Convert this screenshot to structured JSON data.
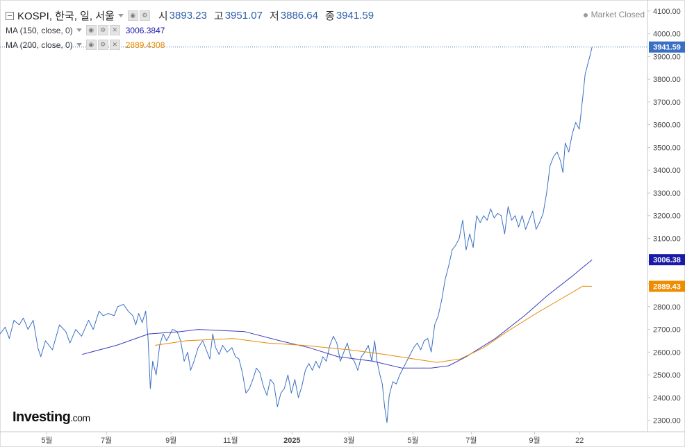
{
  "header": {
    "symbol": "KOSPI, 한국, 일, 서울",
    "open_label": "시",
    "open_value": "3893.23",
    "high_label": "고",
    "high_value": "3951.07",
    "low_label": "저",
    "low_value": "3886.64",
    "close_label": "종",
    "close_value": "3941.59"
  },
  "indicators": [
    {
      "label": "MA (150, close, 0)",
      "value": "3006.3847",
      "color": "#1a1aa8"
    },
    {
      "label": "MA (200, close, 0)",
      "value": "2889.4308",
      "color": "#e58a00"
    }
  ],
  "market_status": "Market Closed",
  "logo": {
    "name": "Investing",
    "suffix": ".com"
  },
  "price_tags": {
    "last": "3941.59",
    "ma150": "3006.38",
    "ma200": "2889.43"
  },
  "chart_data": {
    "type": "line",
    "ylim": [
      2250,
      4130
    ],
    "y_ticks": [
      "2300.00",
      "2400.00",
      "2500.00",
      "2600.00",
      "2700.00",
      "2800.00",
      "2900.00",
      "3000.00",
      "3100.00",
      "3200.00",
      "3300.00",
      "3400.00",
      "3500.00",
      "3600.00",
      "3700.00",
      "3800.00",
      "3900.00",
      "4000.00",
      "4100.00"
    ],
    "x_ticks": [
      {
        "label": "5월",
        "t": 0.0804
      },
      {
        "label": "7월",
        "t": 0.1826
      },
      {
        "label": "9월",
        "t": 0.2935
      },
      {
        "label": "11월",
        "t": 0.3957
      },
      {
        "label": "2025",
        "t": 0.5011
      },
      {
        "label": "3월",
        "t": 0.5989
      },
      {
        "label": "5월",
        "t": 0.7087
      },
      {
        "label": "7월",
        "t": 0.8087
      },
      {
        "label": "9월",
        "t": 0.9174
      },
      {
        "label": "22",
        "t": 0.9946
      }
    ],
    "series": [
      {
        "color": "#3a6fc4",
        "width": 1,
        "points": [
          [
            0.0,
            2680
          ],
          [
            0.009,
            2710
          ],
          [
            0.016,
            2660
          ],
          [
            0.024,
            2740
          ],
          [
            0.033,
            2720
          ],
          [
            0.04,
            2750
          ],
          [
            0.048,
            2700
          ],
          [
            0.057,
            2740
          ],
          [
            0.065,
            2620
          ],
          [
            0.07,
            2580
          ],
          [
            0.078,
            2650
          ],
          [
            0.09,
            2610
          ],
          [
            0.102,
            2720
          ],
          [
            0.113,
            2690
          ],
          [
            0.12,
            2640
          ],
          [
            0.13,
            2700
          ],
          [
            0.14,
            2670
          ],
          [
            0.152,
            2740
          ],
          [
            0.16,
            2700
          ],
          [
            0.17,
            2780
          ],
          [
            0.177,
            2760
          ],
          [
            0.186,
            2770
          ],
          [
            0.196,
            2760
          ],
          [
            0.202,
            2800
          ],
          [
            0.212,
            2810
          ],
          [
            0.22,
            2780
          ],
          [
            0.228,
            2760
          ],
          [
            0.233,
            2720
          ],
          [
            0.238,
            2770
          ],
          [
            0.244,
            2730
          ],
          [
            0.25,
            2780
          ],
          [
            0.254,
            2660
          ],
          [
            0.258,
            2440
          ],
          [
            0.262,
            2560
          ],
          [
            0.268,
            2500
          ],
          [
            0.274,
            2630
          ],
          [
            0.28,
            2680
          ],
          [
            0.286,
            2650
          ],
          [
            0.296,
            2700
          ],
          [
            0.304,
            2690
          ],
          [
            0.31,
            2650
          ],
          [
            0.316,
            2560
          ],
          [
            0.322,
            2600
          ],
          [
            0.327,
            2520
          ],
          [
            0.333,
            2560
          ],
          [
            0.34,
            2620
          ],
          [
            0.348,
            2650
          ],
          [
            0.354,
            2610
          ],
          [
            0.36,
            2570
          ],
          [
            0.365,
            2680
          ],
          [
            0.37,
            2620
          ],
          [
            0.376,
            2590
          ],
          [
            0.382,
            2630
          ],
          [
            0.39,
            2600
          ],
          [
            0.398,
            2620
          ],
          [
            0.404,
            2580
          ],
          [
            0.41,
            2570
          ],
          [
            0.416,
            2510
          ],
          [
            0.422,
            2420
          ],
          [
            0.428,
            2440
          ],
          [
            0.434,
            2480
          ],
          [
            0.44,
            2530
          ],
          [
            0.446,
            2510
          ],
          [
            0.452,
            2450
          ],
          [
            0.458,
            2410
          ],
          [
            0.464,
            2480
          ],
          [
            0.47,
            2460
          ],
          [
            0.476,
            2360
          ],
          [
            0.482,
            2420
          ],
          [
            0.488,
            2440
          ],
          [
            0.494,
            2500
          ],
          [
            0.5,
            2420
          ],
          [
            0.506,
            2480
          ],
          [
            0.512,
            2400
          ],
          [
            0.518,
            2450
          ],
          [
            0.524,
            2520
          ],
          [
            0.53,
            2550
          ],
          [
            0.536,
            2520
          ],
          [
            0.542,
            2560
          ],
          [
            0.548,
            2530
          ],
          [
            0.554,
            2580
          ],
          [
            0.56,
            2560
          ],
          [
            0.566,
            2630
          ],
          [
            0.572,
            2670
          ],
          [
            0.578,
            2640
          ],
          [
            0.584,
            2560
          ],
          [
            0.59,
            2600
          ],
          [
            0.596,
            2640
          ],
          [
            0.602,
            2580
          ],
          [
            0.608,
            2560
          ],
          [
            0.614,
            2520
          ],
          [
            0.62,
            2580
          ],
          [
            0.626,
            2600
          ],
          [
            0.632,
            2630
          ],
          [
            0.638,
            2560
          ],
          [
            0.643,
            2650
          ],
          [
            0.647,
            2560
          ],
          [
            0.652,
            2500
          ],
          [
            0.656,
            2460
          ],
          [
            0.66,
            2360
          ],
          [
            0.664,
            2290
          ],
          [
            0.668,
            2410
          ],
          [
            0.674,
            2470
          ],
          [
            0.68,
            2460
          ],
          [
            0.686,
            2500
          ],
          [
            0.692,
            2530
          ],
          [
            0.698,
            2560
          ],
          [
            0.704,
            2590
          ],
          [
            0.71,
            2620
          ],
          [
            0.716,
            2640
          ],
          [
            0.722,
            2610
          ],
          [
            0.728,
            2650
          ],
          [
            0.734,
            2660
          ],
          [
            0.74,
            2600
          ],
          [
            0.746,
            2720
          ],
          [
            0.752,
            2760
          ],
          [
            0.758,
            2830
          ],
          [
            0.764,
            2920
          ],
          [
            0.77,
            2980
          ],
          [
            0.776,
            3050
          ],
          [
            0.782,
            3070
          ],
          [
            0.788,
            3100
          ],
          [
            0.794,
            3180
          ],
          [
            0.8,
            3050
          ],
          [
            0.806,
            3120
          ],
          [
            0.812,
            3060
          ],
          [
            0.818,
            3200
          ],
          [
            0.824,
            3170
          ],
          [
            0.83,
            3200
          ],
          [
            0.836,
            3180
          ],
          [
            0.842,
            3230
          ],
          [
            0.848,
            3190
          ],
          [
            0.854,
            3210
          ],
          [
            0.86,
            3200
          ],
          [
            0.866,
            3120
          ],
          [
            0.872,
            3240
          ],
          [
            0.878,
            3180
          ],
          [
            0.884,
            3200
          ],
          [
            0.89,
            3150
          ],
          [
            0.896,
            3200
          ],
          [
            0.902,
            3140
          ],
          [
            0.908,
            3180
          ],
          [
            0.914,
            3220
          ],
          [
            0.92,
            3140
          ],
          [
            0.926,
            3170
          ],
          [
            0.932,
            3210
          ],
          [
            0.938,
            3300
          ],
          [
            0.944,
            3420
          ],
          [
            0.95,
            3460
          ],
          [
            0.956,
            3480
          ],
          [
            0.962,
            3440
          ],
          [
            0.966,
            3390
          ],
          [
            0.97,
            3520
          ],
          [
            0.976,
            3480
          ],
          [
            0.982,
            3560
          ],
          [
            0.988,
            3610
          ],
          [
            0.994,
            3580
          ],
          [
            1.0,
            3720
          ],
          [
            1.004,
            3820
          ],
          [
            1.008,
            3860
          ],
          [
            1.012,
            3900
          ],
          [
            1.016,
            3941.59
          ]
        ]
      },
      {
        "color": "#3b3bbf",
        "width": 1,
        "points": [
          [
            0.141,
            2590
          ],
          [
            0.2,
            2630
          ],
          [
            0.255,
            2680
          ],
          [
            0.31,
            2690
          ],
          [
            0.34,
            2700
          ],
          [
            0.42,
            2690
          ],
          [
            0.48,
            2650
          ],
          [
            0.53,
            2620
          ],
          [
            0.58,
            2580
          ],
          [
            0.64,
            2560
          ],
          [
            0.69,
            2530
          ],
          [
            0.74,
            2530
          ],
          [
            0.77,
            2540
          ],
          [
            0.8,
            2580
          ],
          [
            0.85,
            2660
          ],
          [
            0.9,
            2760
          ],
          [
            0.94,
            2850
          ],
          [
            0.98,
            2930
          ],
          [
            1.016,
            3006.38
          ]
        ]
      },
      {
        "color": "#e58a00",
        "width": 1,
        "points": [
          [
            0.266,
            2630
          ],
          [
            0.32,
            2650
          ],
          [
            0.4,
            2660
          ],
          [
            0.46,
            2640
          ],
          [
            0.52,
            2630
          ],
          [
            0.6,
            2610
          ],
          [
            0.66,
            2590
          ],
          [
            0.71,
            2570
          ],
          [
            0.75,
            2555
          ],
          [
            0.79,
            2570
          ],
          [
            0.83,
            2620
          ],
          [
            0.87,
            2690
          ],
          [
            0.92,
            2770
          ],
          [
            0.96,
            2830
          ],
          [
            1.0,
            2890
          ],
          [
            1.016,
            2889.43
          ]
        ]
      }
    ]
  }
}
